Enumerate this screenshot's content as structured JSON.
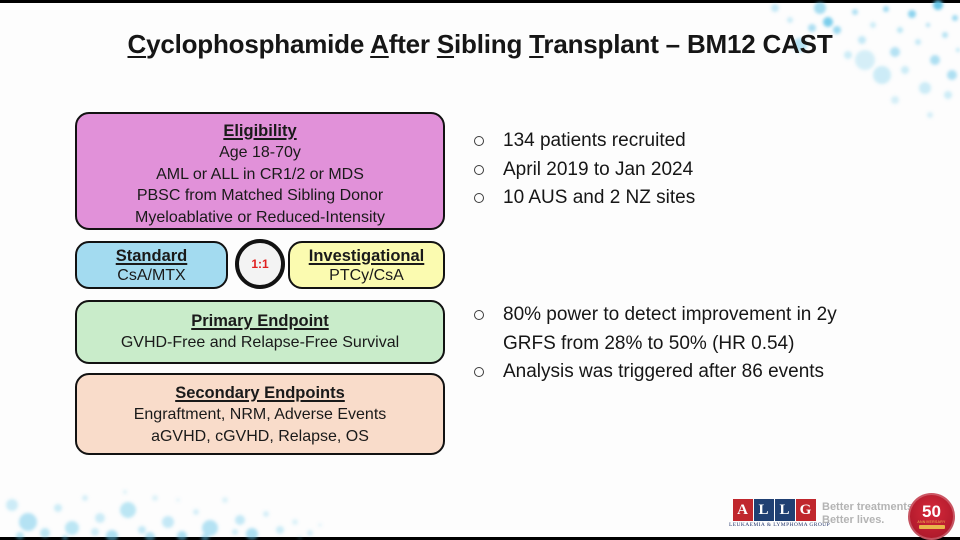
{
  "slide": {
    "title": {
      "segments": [
        {
          "text": "C",
          "underline": true
        },
        {
          "text": "yclophosphamide ",
          "underline": false
        },
        {
          "text": "A",
          "underline": true
        },
        {
          "text": "fter ",
          "underline": false
        },
        {
          "text": "S",
          "underline": true
        },
        {
          "text": "ibling ",
          "underline": false
        },
        {
          "text": "T",
          "underline": true
        },
        {
          "text": "ransplant – BM12 CAST",
          "underline": false
        }
      ]
    },
    "diagram": {
      "eligibility": {
        "heading": "Eligibility",
        "lines": [
          "Age 18-70y",
          "AML or ALL in CR1/2 or MDS",
          "PBSC from Matched Sibling Donor",
          "Myeloablative or Reduced-Intensity"
        ]
      },
      "standard": {
        "heading": "Standard",
        "lines": [
          "CsA/MTX"
        ]
      },
      "randomization_ratio": "1:1",
      "investigational": {
        "heading": "Investigational",
        "lines": [
          "PTCy/CsA"
        ]
      },
      "primary_endpoint": {
        "heading": "Primary Endpoint",
        "lines": [
          "GVHD-Free and Relapse-Free Survival"
        ]
      },
      "secondary_endpoints": {
        "heading": "Secondary Endpoints",
        "lines": [
          "Engraftment, NRM, Adverse Events",
          "aGVHD, cGVHD, Relapse, OS"
        ]
      }
    },
    "bullets_recruitment": [
      "134 patients recruited",
      "April 2019 to Jan 2024",
      "10 AUS and 2 NZ sites"
    ],
    "bullets_statistics": [
      "80% power to detect improvement in 2y GRFS from 28% to 50% (HR 0.54)",
      "Analysis was triggered after 86 events"
    ],
    "footer": {
      "allg": {
        "letters": [
          "A",
          "L",
          "L",
          "G"
        ],
        "letter_colors": [
          "#c0272d",
          "#204073",
          "#204073",
          "#c0272d"
        ],
        "subtext": "Leukaemia & Lymphoma Group"
      },
      "tagline_line1": "Better treatments...",
      "tagline_line2": "Better lives.",
      "anniversary_badge": {
        "number": "50",
        "label": "ANNIVERSARY"
      }
    },
    "colors": {
      "eligibility_fill": "#e191d9",
      "standard_fill": "#a3dbf0",
      "investigational_fill": "#fbfbb0",
      "primary_fill": "#c9ecca",
      "secondary_fill": "#f9dcca",
      "ratio_text": "#e02020",
      "bubble": "#5bc2e7"
    }
  }
}
